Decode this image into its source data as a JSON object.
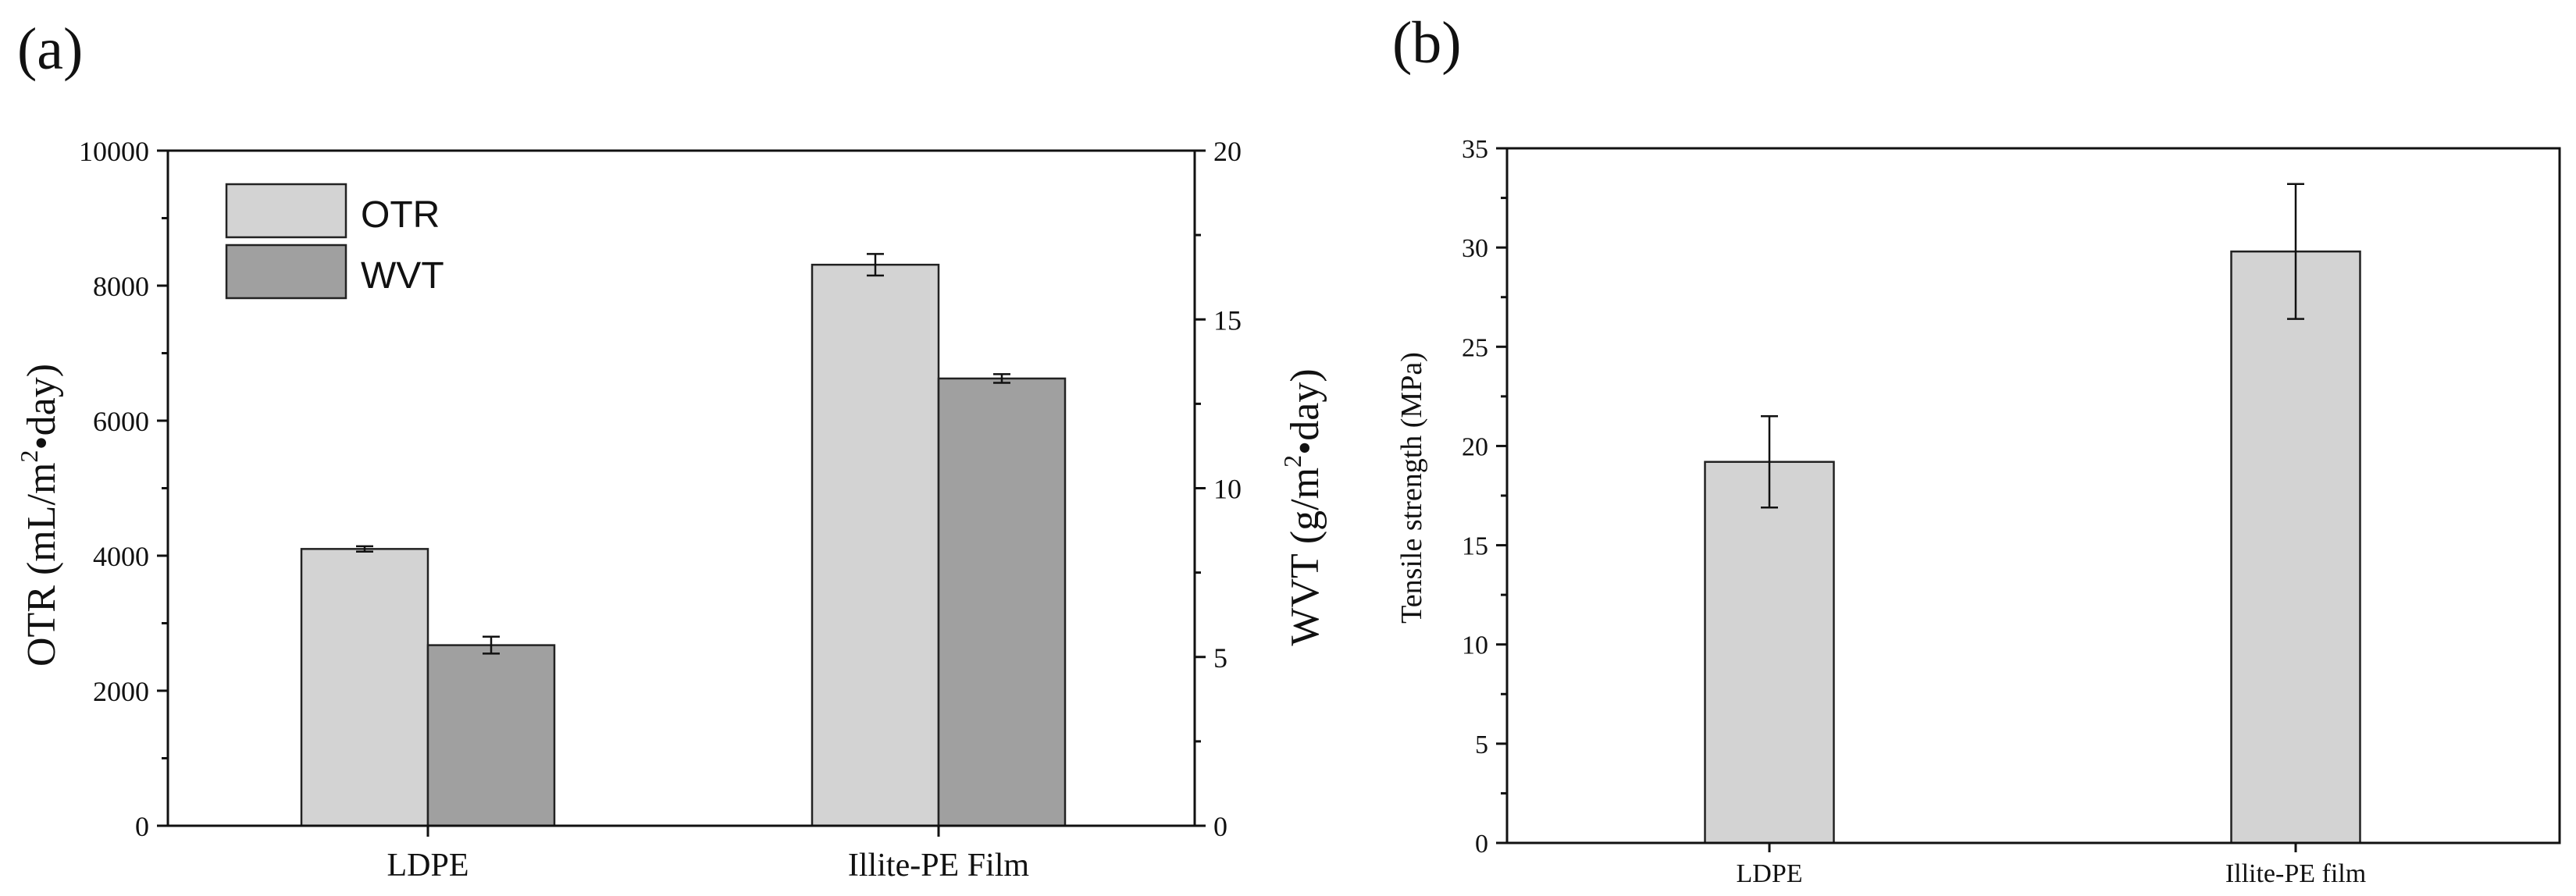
{
  "chart_data": [
    {
      "panel_label": "(a)",
      "type": "bar",
      "categories": [
        "LDPE",
        "Illite-PE Film"
      ],
      "series": [
        {
          "name": "OTR",
          "axis": "left",
          "color": "#d3d3d3",
          "values": [
            4100,
            8310
          ],
          "errors": [
            40,
            160
          ]
        },
        {
          "name": "WVT",
          "axis": "right",
          "color": "#a0a0a0",
          "values": [
            5.35,
            13.25
          ],
          "errors": [
            0.25,
            0.13
          ]
        }
      ],
      "left_axis": {
        "label_pre": "OTR (mL/m",
        "label_sup": "2",
        "label_post": "•day)",
        "ylim": [
          0,
          10000
        ],
        "ticks": [
          "0",
          "2000",
          "4000",
          "6000",
          "8000",
          "10000"
        ],
        "tick_values": [
          0,
          2000,
          4000,
          6000,
          8000,
          10000
        ]
      },
      "right_axis": {
        "label_pre": "WVT (g/m",
        "label_sup": "2",
        "label_post": "•day)",
        "ylim": [
          0,
          20
        ],
        "ticks": [
          "0",
          "5",
          "10",
          "15",
          "20"
        ],
        "tick_values": [
          0,
          5,
          10,
          15,
          20
        ]
      },
      "legend": {
        "position": "top-left",
        "entries": [
          "OTR",
          "WVT"
        ]
      }
    },
    {
      "panel_label": "(b)",
      "type": "bar",
      "categories": [
        "LDPE",
        "Illite-PE film"
      ],
      "series": [
        {
          "name": "Tensile strength",
          "color": "#d3d3d3",
          "values": [
            19.2,
            29.8
          ],
          "errors": [
            2.3,
            3.4
          ]
        }
      ],
      "ylabel": "Tensile strength (MPa)",
      "ylim": [
        0,
        35
      ],
      "ticks": [
        "0",
        "5",
        "10",
        "15",
        "20",
        "25",
        "30",
        "35"
      ],
      "tick_values": [
        0,
        5,
        10,
        15,
        20,
        25,
        30,
        35
      ]
    }
  ]
}
